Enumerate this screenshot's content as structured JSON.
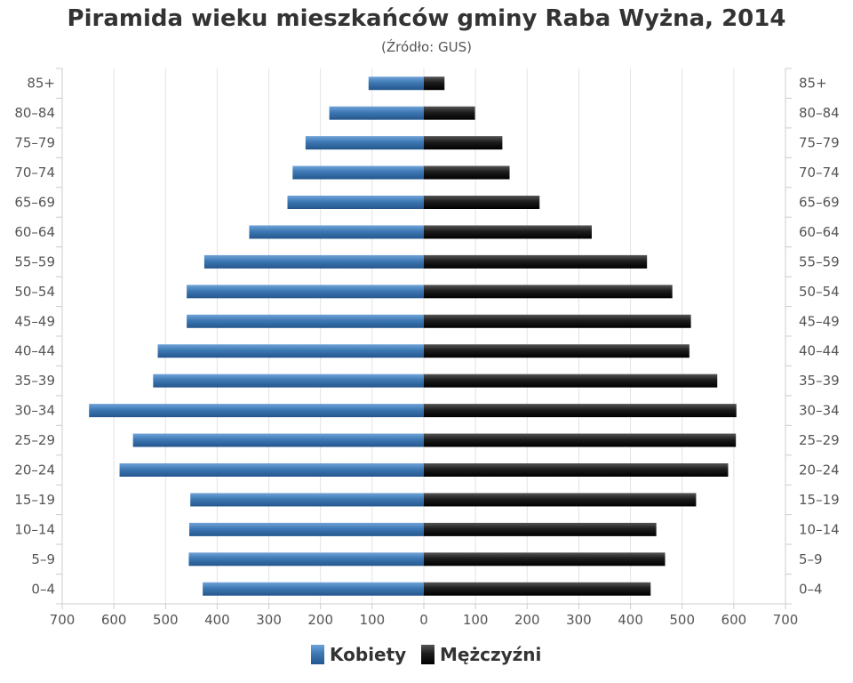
{
  "chart_data": {
    "type": "bar",
    "title": "Piramida wieku mieszkańców gminy Raba Wyżna, 2014",
    "subtitle": "(Źródło: GUS)",
    "categories": [
      "85+",
      "80–84",
      "75–79",
      "70–74",
      "65–69",
      "60–64",
      "55–59",
      "50–54",
      "45–49",
      "40–44",
      "35–39",
      "30–34",
      "25–29",
      "20–24",
      "15–19",
      "10–14",
      "5–9",
      "0–4"
    ],
    "series": [
      {
        "name": "Kobiety",
        "color": "#3d78b4",
        "values": [
          107,
          183,
          229,
          254,
          264,
          338,
          425,
          459,
          459,
          515,
          524,
          648,
          563,
          589,
          452,
          454,
          455,
          428
        ]
      },
      {
        "name": "Mężczyźni",
        "color": "#222222",
        "values": [
          40,
          99,
          152,
          166,
          224,
          325,
          432,
          481,
          517,
          514,
          568,
          605,
          604,
          589,
          527,
          450,
          467,
          439
        ]
      }
    ],
    "xlim": [
      -700,
      700
    ],
    "xticks": [
      -700,
      -600,
      -500,
      -400,
      -300,
      -200,
      -100,
      0,
      100,
      200,
      300,
      400,
      500,
      600,
      700
    ],
    "xtick_labels": [
      "700",
      "600",
      "500",
      "400",
      "300",
      "200",
      "100",
      "0",
      "100",
      "200",
      "300",
      "400",
      "500",
      "600",
      "700"
    ],
    "grid": true,
    "legend_position": "bottom-center"
  }
}
